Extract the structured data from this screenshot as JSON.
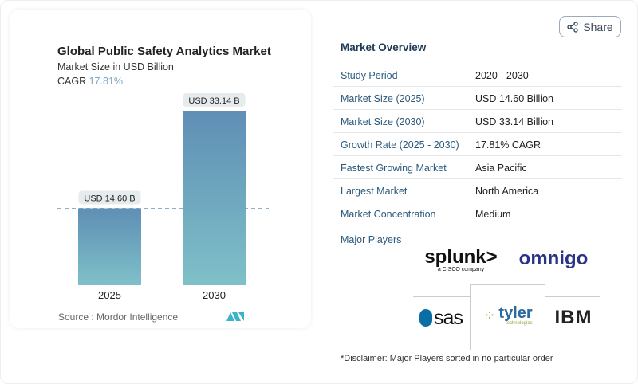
{
  "share_label": "Share",
  "chart_data": {
    "type": "bar",
    "title": "Global Public Safety Analytics Market",
    "subtitle": "Market Size in USD Billion",
    "cagr_label": "CAGR",
    "cagr_value": "17.81%",
    "categories": [
      "2025",
      "2030"
    ],
    "values": [
      14.6,
      33.14
    ],
    "data_labels": [
      "USD 14.60 B",
      "USD 33.14 B"
    ],
    "source": "Source :  Mordor Intelligence",
    "colors": {
      "bar_top": "#5f8fb5",
      "bar_bottom": "#7fc0c8"
    }
  },
  "overview": {
    "title": "Market Overview",
    "rows": [
      {
        "label": "Study Period",
        "value": "2020 - 2030"
      },
      {
        "label": "Market Size (2025)",
        "value": "USD 14.60 Billion"
      },
      {
        "label": "Market Size (2030)",
        "value": "USD 33.14 Billion"
      },
      {
        "label": "Growth Rate (2025 - 2030)",
        "value": "17.81% CAGR"
      },
      {
        "label": "Fastest Growing Market",
        "value": "Asia Pacific"
      },
      {
        "label": "Largest Market",
        "value": "North America"
      },
      {
        "label": "Market Concentration",
        "value": "Medium"
      }
    ],
    "major_players_label": "Major Players",
    "players": [
      "splunk>",
      "a CISCO company",
      "omnigo",
      "sas",
      "tyler",
      "technologies",
      "IBM"
    ],
    "disclaimer": "*Disclaimer: Major Players sorted in no particular order"
  }
}
